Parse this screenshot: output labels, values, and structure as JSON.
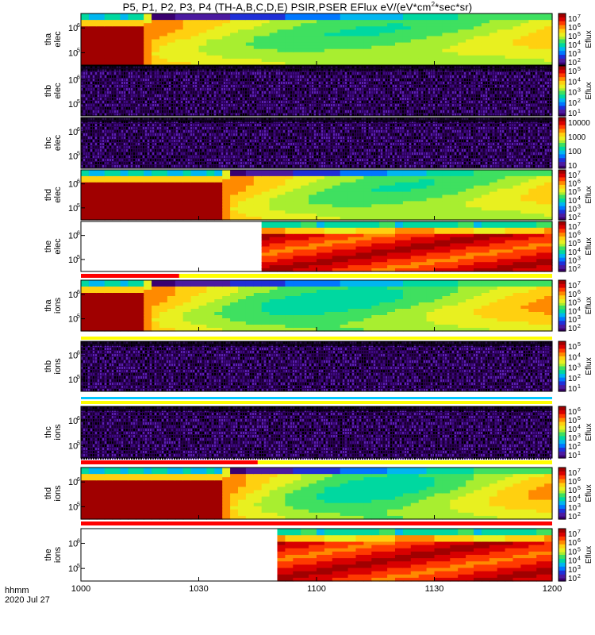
{
  "title_parts": {
    "main": "P5, P1, P2, P3, P4 (TH-A,B,C,D,E) PSIR,PSER EFlux eV/(eV*cm",
    "sup": "2",
    "rest": "*sec*sr)"
  },
  "footer": {
    "format": "hhmm",
    "date": "2020 Jul 27"
  },
  "chart_data": {
    "type": "heatmap",
    "description_units": "EFlux eV/(eV*cm^2*sec*sr)",
    "x": {
      "ticks": [
        {
          "value": 0,
          "label": "1000"
        },
        {
          "value": 30,
          "label": "1030"
        },
        {
          "value": 60,
          "label": "1100"
        },
        {
          "value": 90,
          "label": "1130"
        },
        {
          "value": 120,
          "label": "1200"
        }
      ],
      "range": [
        0,
        120
      ]
    },
    "panels": [
      {
        "id": "tha-elec",
        "ylabel": [
          "tha",
          "elec"
        ],
        "yticks": [
          "10",
          "10"
        ],
        "cbar": [
          "10",
          "10",
          "10",
          "10",
          "10",
          "10"
        ],
        "cbar_exp": [
          "7",
          "6",
          "5",
          "4",
          "3",
          "2"
        ],
        "cbar_label": "Eflux",
        "kind": "elec_data",
        "gap_end": 0,
        "transition": [
          16,
          19
        ],
        "sat_bar": null
      },
      {
        "id": "thb-elec",
        "ylabel": [
          "thb",
          "elec"
        ],
        "yticks": [
          "10",
          "10"
        ],
        "cbar": [
          "10",
          "10",
          "10",
          "10",
          "10"
        ],
        "cbar_exp": [
          "5",
          "4",
          "3",
          "2",
          "1"
        ],
        "cbar_label": "Eflux",
        "kind": "noise",
        "sat_bar": null
      },
      {
        "id": "thc-elec",
        "ylabel": [
          "thc",
          "elec"
        ],
        "yticks": [
          "10",
          "10"
        ],
        "cbar": [
          "10000",
          "1000",
          "100",
          "10"
        ],
        "cbar_exp": [
          "",
          "",
          "",
          ""
        ],
        "cbar_label": "",
        "kind": "noise",
        "sat_bar": null
      },
      {
        "id": "thd-elec",
        "ylabel": [
          "thd",
          "elec"
        ],
        "yticks": [
          "10",
          "10"
        ],
        "cbar": [
          "10",
          "10",
          "10",
          "10",
          "10",
          "10"
        ],
        "cbar_exp": [
          "7",
          "6",
          "5",
          "4",
          "3",
          "2"
        ],
        "cbar_label": "Eflux",
        "kind": "elec_data",
        "gap_end": 0,
        "transition": [
          36,
          39
        ],
        "sat_bar": null
      },
      {
        "id": "the-elec",
        "ylabel": [
          "the",
          "elec"
        ],
        "yticks": [
          "10",
          "10"
        ],
        "cbar": [
          "10",
          "10",
          "10",
          "10",
          "10",
          "10"
        ],
        "cbar_exp": [
          "7",
          "6",
          "5",
          "4",
          "3",
          "2"
        ],
        "cbar_label": "Eflux",
        "kind": "late_data",
        "gap_end": 46,
        "sat_bar": {
          "red_end": 25
        }
      },
      {
        "id": "tha-ions",
        "ylabel": [
          "tha",
          "ions"
        ],
        "yticks": [
          "10",
          "10"
        ],
        "cbar": [
          "10",
          "10",
          "10",
          "10",
          "10",
          "10"
        ],
        "cbar_exp": [
          "7",
          "6",
          "5",
          "4",
          "3",
          "2"
        ],
        "cbar_label": "Eflux",
        "kind": "ion_data",
        "gap_end": 0,
        "transition": [
          16,
          19
        ],
        "sat_bar": null
      },
      {
        "id": "thb-ions",
        "ylabel": [
          "thb",
          "ions"
        ],
        "yticks": [
          "10",
          "10"
        ],
        "cbar": [
          "10",
          "10",
          "10",
          "10",
          "10"
        ],
        "cbar_exp": [
          "5",
          "4",
          "3",
          "2",
          "1"
        ],
        "cbar_label": "Eflux",
        "kind": "noise",
        "sat_bar": null
      },
      {
        "id": "thc-ions",
        "ylabel": [
          "thc",
          "ions"
        ],
        "yticks": [
          "10",
          "10"
        ],
        "cbar": [
          "10",
          "10",
          "10",
          "10",
          "10",
          "10"
        ],
        "cbar_exp": [
          "6",
          "5",
          "4",
          "3",
          "2",
          "1"
        ],
        "cbar_label": "Eflux",
        "kind": "noise",
        "sat_bar": {
          "red_end": 45
        }
      },
      {
        "id": "thd-ions",
        "ylabel": [
          "thd",
          "ions"
        ],
        "yticks": [
          "10",
          "10"
        ],
        "cbar": [
          "10",
          "10",
          "10",
          "10",
          "10",
          "10"
        ],
        "cbar_exp": [
          "7",
          "6",
          "5",
          "4",
          "3",
          "2"
        ],
        "cbar_label": "Eflux",
        "kind": "ion_data",
        "gap_end": 0,
        "transition": [
          36,
          39
        ],
        "sat_bar": {
          "red_end": 120
        }
      },
      {
        "id": "the-ions",
        "ylabel": [
          "the",
          "ions"
        ],
        "yticks": [
          "10",
          "10"
        ],
        "cbar": [
          "10",
          "10",
          "10",
          "10",
          "10",
          "10"
        ],
        "cbar_exp": [
          "7",
          "6",
          "5",
          "4",
          "3",
          "2"
        ],
        "cbar_label": "Eflux",
        "kind": "late_data",
        "gap_end": 51,
        "sat_bar": null
      }
    ],
    "ytick_exponents": [
      "6",
      "5"
    ],
    "colors": {
      "palette": [
        "#3a0070",
        "#4b1aa0",
        "#1f2fd8",
        "#0077ff",
        "#00b6f0",
        "#00d8a0",
        "#3fe060",
        "#a8ee30",
        "#e8f020",
        "#ffd010",
        "#ff8a00",
        "#ff3a00",
        "#d80000",
        "#a00000"
      ],
      "sat_red": "#ff0000",
      "sat_yellow": "#ffff00"
    }
  }
}
